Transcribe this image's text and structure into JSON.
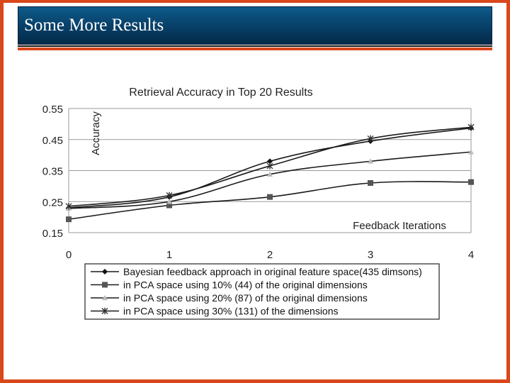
{
  "slide": {
    "title": "Some More Results"
  },
  "colors": {
    "border": "#d9471b",
    "title_bar": "#08416a",
    "title_text": "#ffffff"
  },
  "chart_data": {
    "type": "line",
    "title": "Retrieval Accuracy in Top 20 Results",
    "ylabel": "Accuracy",
    "xlabel": "Feedback Iterations",
    "x": [
      0,
      1,
      2,
      3,
      4
    ],
    "x_ticks": [
      "0",
      "1",
      "2",
      "3",
      "4"
    ],
    "y_ticks": [
      "0.15",
      "0.25",
      "0.35",
      "0.45",
      "0.55"
    ],
    "ylim": [
      0.15,
      0.55
    ],
    "grid": true,
    "legend_position": "bottom",
    "series": [
      {
        "name": "Bayesian feedback approach in original feature space(435 dimsons)",
        "marker": "diamond",
        "values": [
          0.23,
          0.265,
          0.38,
          0.445,
          0.487
        ]
      },
      {
        "name": "in PCA space using 10% (44) of the original dimensions",
        "marker": "square",
        "values": [
          0.193,
          0.238,
          0.265,
          0.31,
          0.313
        ]
      },
      {
        "name": "in PCA space using 20% (87) of the original dimensions",
        "marker": "triangle",
        "values": [
          0.228,
          0.25,
          0.338,
          0.38,
          0.41
        ]
      },
      {
        "name": "in PCA space using 30% (131) of the dimensions",
        "marker": "star",
        "values": [
          0.235,
          0.27,
          0.365,
          0.453,
          0.49
        ]
      }
    ]
  }
}
